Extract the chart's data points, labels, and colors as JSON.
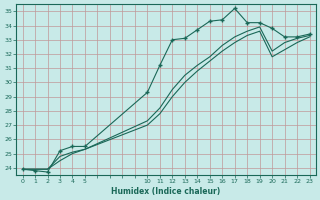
{
  "xlabel": "Humidex (Indice chaleur)",
  "background_color": "#c8eae8",
  "grid_color": "#c09898",
  "line_color": "#1a6858",
  "xlim": [
    -0.5,
    23.5
  ],
  "ylim": [
    23.5,
    35.5
  ],
  "xtick_positions": [
    0,
    1,
    2,
    3,
    4,
    5,
    6,
    7,
    8,
    9,
    10,
    11,
    12,
    13,
    14,
    15,
    16,
    17,
    18,
    19,
    20,
    21,
    22,
    23
  ],
  "xtick_labels": [
    "0",
    "1",
    "2",
    "3",
    "4",
    "5",
    "",
    "",
    "",
    "",
    "10",
    "11",
    "12",
    "13",
    "14",
    "15",
    "16",
    "17",
    "18",
    "19",
    "20",
    "21",
    "22",
    "23"
  ],
  "yticks": [
    24,
    25,
    26,
    27,
    28,
    29,
    30,
    31,
    32,
    33,
    34,
    35
  ],
  "series": [
    {
      "x": [
        0,
        1,
        2,
        3,
        4,
        5,
        10,
        11,
        12,
        13,
        14,
        15,
        16,
        17,
        18,
        19,
        20,
        21,
        22,
        23
      ],
      "y": [
        23.9,
        23.8,
        23.7,
        25.2,
        25.5,
        25.5,
        29.3,
        31.2,
        33.0,
        33.1,
        33.7,
        34.3,
        34.4,
        35.2,
        34.2,
        34.2,
        33.8,
        33.2,
        33.2,
        33.4
      ],
      "marker": "+"
    },
    {
      "x": [
        0,
        1,
        2,
        3,
        4,
        5,
        10,
        11,
        12,
        13,
        14,
        15,
        16,
        17,
        18,
        19,
        20,
        21,
        22,
        23
      ],
      "y": [
        23.9,
        23.9,
        23.9,
        24.8,
        25.1,
        25.3,
        27.3,
        28.2,
        29.5,
        30.5,
        31.2,
        31.8,
        32.6,
        33.2,
        33.6,
        33.9,
        32.2,
        32.8,
        33.1,
        33.3
      ],
      "marker": null
    },
    {
      "x": [
        0,
        1,
        2,
        3,
        4,
        5,
        10,
        11,
        12,
        13,
        14,
        15,
        16,
        17,
        18,
        19,
        20,
        21,
        22,
        23
      ],
      "y": [
        23.9,
        23.9,
        23.9,
        24.5,
        25.0,
        25.3,
        27.0,
        27.8,
        29.0,
        30.0,
        30.8,
        31.5,
        32.2,
        32.8,
        33.3,
        33.6,
        31.8,
        32.3,
        32.8,
        33.2
      ],
      "marker": null
    }
  ]
}
